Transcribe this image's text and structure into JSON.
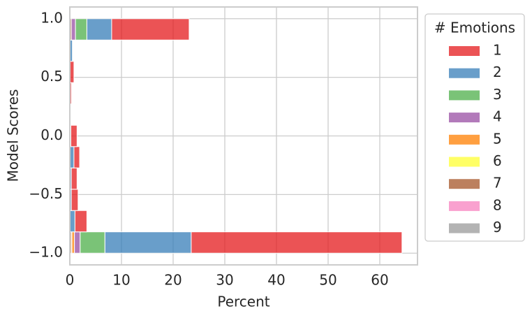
{
  "chart_data": {
    "type": "histogram",
    "orientation": "horizontal",
    "multiple": "stack",
    "xlabel": "Percent",
    "ylabel": "Model Scores",
    "legend_title": "# Emotions",
    "legend": "outside upper right",
    "grid": true,
    "bins": [
      -1.0,
      -0.8182,
      -0.6364,
      -0.4545,
      -0.2727,
      -0.0909,
      0.0909,
      0.2727,
      0.4545,
      0.6364,
      0.8182,
      1.0
    ],
    "xlim": [
      0,
      67.3
    ],
    "xticks": [
      0,
      10,
      20,
      30,
      40,
      50,
      60
    ],
    "ylim": [
      -1.1,
      1.1
    ],
    "yticks": [
      {
        "value": -1.0,
        "label": "−1.0"
      },
      {
        "value": -0.5,
        "label": "−0.5"
      },
      {
        "value": 0.0,
        "label": "0.0"
      },
      {
        "value": 0.5,
        "label": "0.5"
      },
      {
        "value": 1.0,
        "label": "1.0"
      }
    ],
    "series": [
      {
        "name": "1",
        "color": "#e41a1c",
        "values": [
          40.8,
          2.3,
          1.3,
          1.1,
          1.1,
          1.2,
          0,
          0.3,
          0.8,
          0,
          15.0
        ]
      },
      {
        "name": "2",
        "color": "#377eb8",
        "values": [
          16.7,
          1.0,
          0.3,
          0.3,
          0.8,
          0.2,
          0,
          0,
          0,
          0.5,
          4.8
        ]
      },
      {
        "name": "3",
        "color": "#4daf4a",
        "values": [
          4.8,
          0,
          0,
          0,
          0,
          0,
          0,
          0,
          0,
          0,
          2.2
        ]
      },
      {
        "name": "4",
        "color": "#984ea3",
        "values": [
          1.1,
          0,
          0,
          0,
          0,
          0,
          0,
          0,
          0,
          0,
          0.8
        ]
      },
      {
        "name": "5",
        "color": "#ff7f00",
        "values": [
          0.5,
          0,
          0,
          0,
          0,
          0,
          0,
          0,
          0,
          0,
          0
        ]
      },
      {
        "name": "6",
        "color": "#ffff33",
        "values": [
          0.1,
          0,
          0,
          0,
          0,
          0,
          0,
          0,
          0,
          0,
          0
        ]
      },
      {
        "name": "7",
        "color": "#a65628",
        "values": [
          0.3,
          0,
          0,
          0,
          0,
          0,
          0,
          0,
          0,
          0,
          0.3
        ]
      },
      {
        "name": "8",
        "color": "#f781bf",
        "values": [
          0,
          0,
          0,
          0,
          0,
          0,
          0,
          0,
          0,
          0,
          0
        ]
      },
      {
        "name": "9",
        "color": "#999999",
        "values": [
          0,
          0,
          0,
          0,
          0,
          0,
          0,
          0,
          0,
          0,
          0
        ]
      }
    ]
  }
}
